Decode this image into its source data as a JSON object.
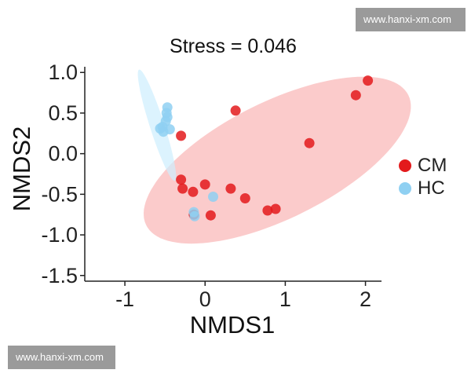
{
  "watermarks": {
    "top": "www.hanxi-xm.com",
    "bottom": "www.hanxi-xm.com"
  },
  "chart_data": {
    "type": "scatter",
    "title": "Stress = 0.046",
    "xlabel": "NMDS1",
    "ylabel": "NMDS2",
    "xlim": [
      -1.5,
      2.2
    ],
    "ylim": [
      -1.57,
      1.07
    ],
    "xticks": [
      -1,
      0,
      1,
      2
    ],
    "yticks": [
      1.0,
      0.5,
      0.0,
      -0.5,
      -1.0,
      -1.5
    ],
    "xtick_labels": [
      "-1",
      "0",
      "1",
      "2"
    ],
    "ytick_labels": [
      "1.0",
      "0.5",
      "0.0",
      "-0.5",
      "-1.0",
      "-1.5"
    ],
    "grid": false,
    "legend_position": "right",
    "series": [
      {
        "name": "CM",
        "color": "#e31a1c",
        "ellipse_color": "#f8a8a8",
        "ellipse": {
          "cx": 0.9,
          "cy": -0.08,
          "rx": 1.82,
          "ry": 0.72,
          "angle_deg": 26
        },
        "points": [
          [
            2.03,
            0.9
          ],
          [
            1.88,
            0.72
          ],
          [
            0.38,
            0.53
          ],
          [
            1.3,
            0.13
          ],
          [
            -0.3,
            0.22
          ],
          [
            -0.3,
            -0.32
          ],
          [
            -0.28,
            -0.43
          ],
          [
            -0.15,
            -0.47
          ],
          [
            0.0,
            -0.38
          ],
          [
            0.32,
            -0.43
          ],
          [
            0.5,
            -0.55
          ],
          [
            0.88,
            -0.68
          ],
          [
            0.78,
            -0.7
          ],
          [
            0.07,
            -0.76
          ],
          [
            -0.14,
            -0.75
          ]
        ]
      },
      {
        "name": "HC",
        "color": "#8fd0f2",
        "ellipse_color": "#cdeefd",
        "ellipse": {
          "cx": -0.6,
          "cy": 0.35,
          "rx": 0.72,
          "ry": 0.09,
          "angle_deg": 108
        },
        "points": [
          [
            -0.47,
            0.57
          ],
          [
            -0.48,
            0.5
          ],
          [
            -0.47,
            0.45
          ],
          [
            -0.49,
            0.4
          ],
          [
            -0.53,
            0.33
          ],
          [
            -0.56,
            0.31
          ],
          [
            -0.52,
            0.27
          ],
          [
            -0.44,
            0.3
          ],
          [
            0.1,
            -0.53
          ],
          [
            -0.14,
            -0.72
          ],
          [
            -0.13,
            -0.77
          ]
        ]
      }
    ]
  }
}
